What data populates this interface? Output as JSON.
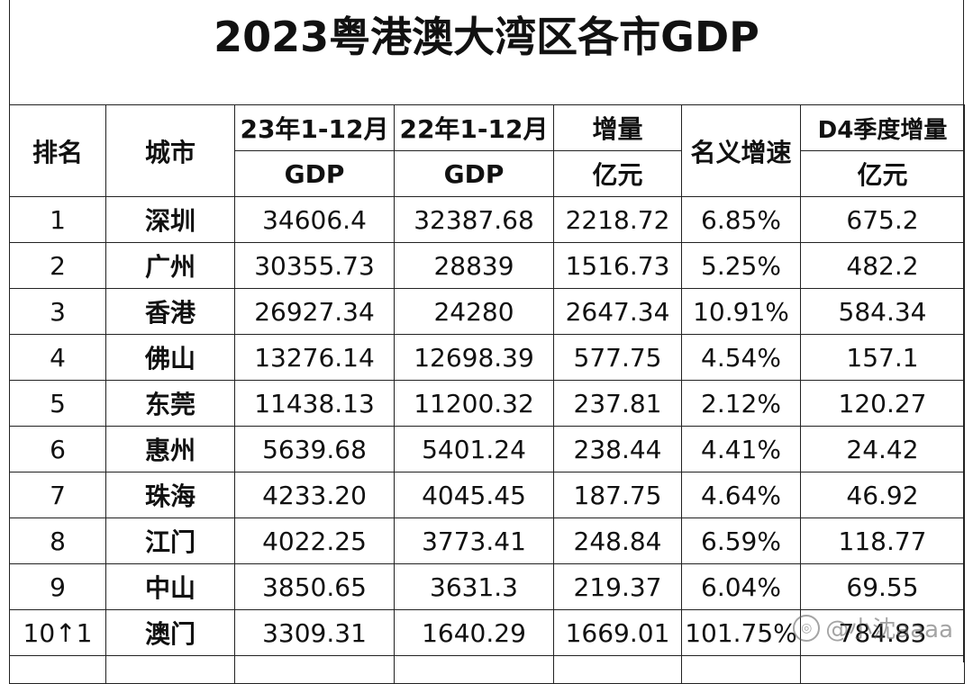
{
  "title": "2023粤港澳大湾区各市GDP",
  "headers": {
    "rank": "排名",
    "city": "城市",
    "gdp23_top": "23年1-12月",
    "gdp23_bottom": "GDP",
    "gdp22_top": "22年1-12月",
    "gdp22_bottom": "GDP",
    "increase_top": "增量",
    "increase_bottom": "亿元",
    "growth": "名义增速",
    "q4_top": "D4季度增量",
    "q4_bottom": "亿元"
  },
  "rows": [
    {
      "rank": "1",
      "city": "深圳",
      "gdp23": "34606.4",
      "gdp22": "32387.68",
      "increase": "2218.72",
      "growth": "6.85%",
      "q4": "675.2"
    },
    {
      "rank": "2",
      "city": "广州",
      "gdp23": "30355.73",
      "gdp22": "28839",
      "increase": "1516.73",
      "growth": "5.25%",
      "q4": "482.2"
    },
    {
      "rank": "3",
      "city": "香港",
      "gdp23": "26927.34",
      "gdp22": "24280",
      "increase": "2647.34",
      "growth": "10.91%",
      "q4": "584.34"
    },
    {
      "rank": "4",
      "city": "佛山",
      "gdp23": "13276.14",
      "gdp22": "12698.39",
      "increase": "577.75",
      "growth": "4.54%",
      "q4": "157.1"
    },
    {
      "rank": "5",
      "city": "东莞",
      "gdp23": "11438.13",
      "gdp22": "11200.32",
      "increase": "237.81",
      "growth": "2.12%",
      "q4": "120.27"
    },
    {
      "rank": "6",
      "city": "惠州",
      "gdp23": "5639.68",
      "gdp22": "5401.24",
      "increase": "238.44",
      "growth": "4.41%",
      "q4": "24.42"
    },
    {
      "rank": "7",
      "city": "珠海",
      "gdp23": "4233.20",
      "gdp22": "4045.45",
      "increase": "187.75",
      "growth": "4.64%",
      "q4": "46.92"
    },
    {
      "rank": "8",
      "city": "江门",
      "gdp23": "4022.25",
      "gdp22": "3773.41",
      "increase": "248.84",
      "growth": "6.59%",
      "q4": "118.77"
    },
    {
      "rank": "9",
      "city": "中山",
      "gdp23": "3850.65",
      "gdp22": "3631.3",
      "increase": "219.37",
      "growth": "6.04%",
      "q4": "69.55"
    },
    {
      "rank": "10↑1",
      "city": "澳门",
      "gdp23": "3309.31",
      "gdp22": "1640.29",
      "increase": "1669.01",
      "growth": "101.75%",
      "q4": "784.83"
    }
  ],
  "watermark": "@小沈aaaa"
}
